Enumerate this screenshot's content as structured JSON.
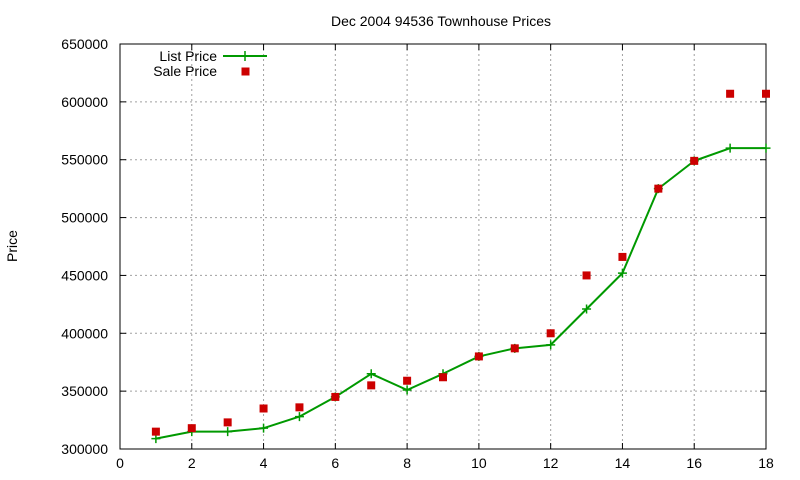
{
  "chart_data": {
    "type": "line",
    "title": "Dec 2004 94536 Townhouse Prices",
    "xlabel": "",
    "ylabel": "Price",
    "xlim": [
      0,
      18
    ],
    "ylim": [
      300000,
      650000
    ],
    "xticks": [
      0,
      2,
      4,
      6,
      8,
      10,
      12,
      14,
      16,
      18
    ],
    "yticks": [
      300000,
      350000,
      400000,
      450000,
      500000,
      550000,
      600000,
      650000
    ],
    "grid": true,
    "legend_position": "top-left",
    "series": [
      {
        "name": "List Price",
        "style": "line-plus",
        "color": "#009900",
        "x": [
          1,
          2,
          3,
          4,
          5,
          6,
          7,
          8,
          9,
          10,
          11,
          12,
          13,
          14,
          15,
          16,
          17,
          18
        ],
        "y": [
          309000,
          315000,
          315000,
          318000,
          328000,
          345000,
          365000,
          351000,
          365000,
          380000,
          387000,
          390000,
          421000,
          452000,
          525000,
          549000,
          560000,
          560000
        ]
      },
      {
        "name": "Sale Price",
        "style": "square-markers",
        "color": "#cc0000",
        "x": [
          1,
          2,
          3,
          4,
          5,
          6,
          7,
          8,
          9,
          10,
          11,
          12,
          13,
          14,
          15,
          16,
          17,
          18
        ],
        "y": [
          315000,
          318000,
          323000,
          335000,
          336000,
          345000,
          355000,
          359000,
          362000,
          380000,
          387000,
          400000,
          450000,
          466000,
          525000,
          549000,
          607000,
          607000
        ]
      }
    ]
  }
}
